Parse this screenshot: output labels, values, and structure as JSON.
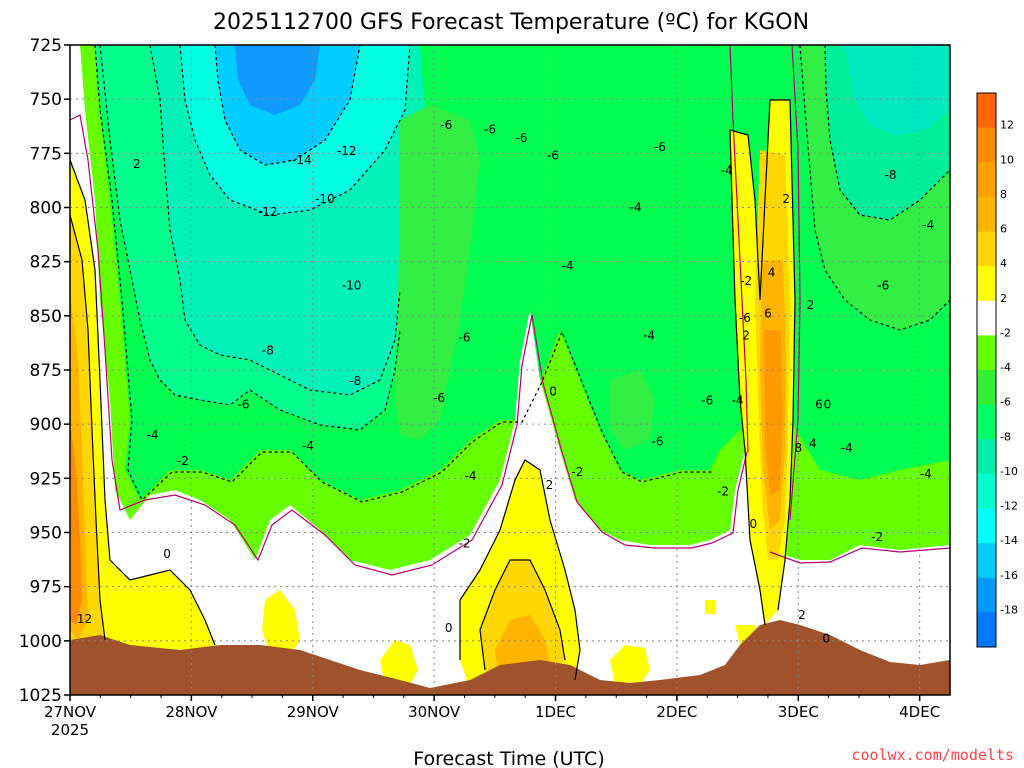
{
  "chart_data": {
    "type": "heatmap",
    "title": "2025112700 GFS Forecast Temperature (ºC) for KGON",
    "xlabel": "Forecast Time (UTC)",
    "ylabel": "",
    "credit": "coolwx.com/modelts",
    "x_ticks": [
      "27NOV",
      "28NOV",
      "29NOV",
      "30NOV",
      "1DEC",
      "2DEC",
      "3DEC",
      "4DEC"
    ],
    "x_year": "2025",
    "xlim_days": [
      0,
      7.25
    ],
    "y_ticks": [
      725,
      750,
      775,
      800,
      825,
      850,
      875,
      900,
      925,
      950,
      975,
      1000,
      1025
    ],
    "ylim_hpa": [
      725,
      1025
    ],
    "colorbar": {
      "labels": [
        12,
        10,
        8,
        6,
        4,
        2,
        -2,
        -4,
        -6,
        -8,
        -10,
        -12,
        -14,
        -16,
        -18
      ],
      "colors": [
        "#ff6600",
        "#ff8c00",
        "#ffa000",
        "#ffb400",
        "#ffd700",
        "#ffff00",
        "#ffffff",
        "#66ff00",
        "#33ee33",
        "#00ff66",
        "#00eeaa",
        "#00ffcc",
        "#00ffff",
        "#00ccff",
        "#0099ff",
        "#0077ff"
      ]
    },
    "contour_labels": [
      {
        "text": "12",
        "day": 0.12,
        "p": 990
      },
      {
        "text": "2",
        "day": 0.55,
        "p": 780
      },
      {
        "text": "0",
        "day": 0.8,
        "p": 960
      },
      {
        "text": "-2",
        "day": 0.93,
        "p": 917
      },
      {
        "text": "-4",
        "day": 0.68,
        "p": 905
      },
      {
        "text": "-6",
        "day": 1.43,
        "p": 891
      },
      {
        "text": "-8",
        "day": 1.63,
        "p": 866
      },
      {
        "text": "-10",
        "day": 2.1,
        "p": 796
      },
      {
        "text": "-12",
        "day": 1.63,
        "p": 802
      },
      {
        "text": "-14",
        "day": 1.91,
        "p": 778
      },
      {
        "text": "-12",
        "day": 2.28,
        "p": 774
      },
      {
        "text": "-10",
        "day": 2.32,
        "p": 836
      },
      {
        "text": "-8",
        "day": 2.35,
        "p": 880
      },
      {
        "text": "-4",
        "day": 1.96,
        "p": 910
      },
      {
        "text": "-6",
        "day": 3.04,
        "p": 888
      },
      {
        "text": "-6",
        "day": 3.25,
        "p": 860
      },
      {
        "text": "-4",
        "day": 3.3,
        "p": 924
      },
      {
        "text": "-2",
        "day": 3.25,
        "p": 955
      },
      {
        "text": "0",
        "day": 3.12,
        "p": 994
      },
      {
        "text": "-6",
        "day": 3.1,
        "p": 762
      },
      {
        "text": "-6",
        "day": 3.46,
        "p": 764
      },
      {
        "text": "-6",
        "day": 3.72,
        "p": 768
      },
      {
        "text": "-6",
        "day": 3.98,
        "p": 776
      },
      {
        "text": "-4",
        "day": 4.1,
        "p": 827
      },
      {
        "text": "0",
        "day": 3.98,
        "p": 885
      },
      {
        "text": "2",
        "day": 3.95,
        "p": 928
      },
      {
        "text": "-2",
        "day": 4.18,
        "p": 922
      },
      {
        "text": "-6",
        "day": 4.86,
        "p": 772
      },
      {
        "text": "-4",
        "day": 4.66,
        "p": 800
      },
      {
        "text": "-4",
        "day": 4.77,
        "p": 859
      },
      {
        "text": "-6",
        "day": 4.84,
        "p": 908
      },
      {
        "text": "-6",
        "day": 5.25,
        "p": 889
      },
      {
        "text": "-4",
        "day": 5.5,
        "p": 889
      },
      {
        "text": "-4",
        "day": 5.41,
        "p": 783
      },
      {
        "text": "-2",
        "day": 5.57,
        "p": 834
      },
      {
        "text": "-6",
        "day": 5.56,
        "p": 851
      },
      {
        "text": "-2",
        "day": 5.38,
        "p": 931
      },
      {
        "text": "0",
        "day": 5.63,
        "p": 946
      },
      {
        "text": "2",
        "day": 5.9,
        "p": 796
      },
      {
        "text": "4",
        "day": 5.78,
        "p": 830
      },
      {
        "text": "2",
        "day": 5.57,
        "p": 859
      },
      {
        "text": "6",
        "day": 5.75,
        "p": 849
      },
      {
        "text": "2",
        "day": 6.1,
        "p": 845
      },
      {
        "text": "6",
        "day": 6.17,
        "p": 891
      },
      {
        "text": "0",
        "day": 6.24,
        "p": 891
      },
      {
        "text": "8",
        "day": 6.0,
        "p": 911
      },
      {
        "text": "4",
        "day": 6.12,
        "p": 909
      },
      {
        "text": "2",
        "day": 6.03,
        "p": 988
      },
      {
        "text": "0",
        "day": 6.23,
        "p": 999
      },
      {
        "text": "-4",
        "day": 6.4,
        "p": 911
      },
      {
        "text": "-2",
        "day": 6.65,
        "p": 952
      },
      {
        "text": "-8",
        "day": 6.76,
        "p": 785
      },
      {
        "text": "-6",
        "day": 6.7,
        "p": 836
      },
      {
        "text": "-4",
        "day": 7.07,
        "p": 808
      },
      {
        "text": "-4",
        "day": 7.05,
        "p": 923
      }
    ]
  }
}
